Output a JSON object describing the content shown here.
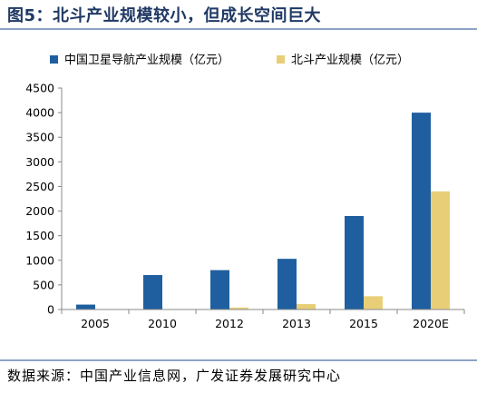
{
  "figure": {
    "title": "图5：北斗产业规模较小，但成长空间巨大",
    "source": "数据来源：中国产业信息网，广发证券发展研究中心"
  },
  "colors": {
    "series1": "#1f5fa0",
    "series2": "#e8cf77",
    "title": "#1f3864",
    "rule": "#8ca3c4",
    "axis": "#888888"
  },
  "chart_data": {
    "type": "bar",
    "title": "",
    "xlabel": "",
    "ylabel": "",
    "categories": [
      "2005",
      "2010",
      "2012",
      "2013",
      "2015",
      "2020E"
    ],
    "series": [
      {
        "name": "中国卫星导航产业规模（亿元）",
        "values": [
          100,
          700,
          800,
          1030,
          1900,
          4000
        ]
      },
      {
        "name": "北斗产业规模（亿元）",
        "values": [
          0,
          0,
          40,
          110,
          270,
          2400
        ]
      }
    ],
    "ylim": [
      0,
      4500
    ],
    "yticks": [
      0,
      500,
      1000,
      1500,
      2000,
      2500,
      3000,
      3500,
      4000,
      4500
    ],
    "grid": false,
    "legend": "top"
  }
}
